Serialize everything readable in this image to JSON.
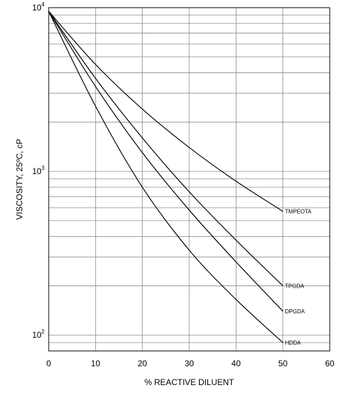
{
  "chart_data": {
    "type": "line",
    "xlabel": "% REACTIVE DILUENT",
    "ylabel": "VISCOSITY, 25ºC, cP",
    "xlim": [
      0,
      60
    ],
    "ylim": [
      80,
      10000
    ],
    "yscale": "log",
    "grid": true,
    "x_ticks": [
      "0",
      "10",
      "20",
      "30",
      "40",
      "50",
      "60"
    ],
    "y_ticks": [
      {
        "base": "10",
        "exp": "2",
        "value": 100
      },
      {
        "base": "10",
        "exp": "3",
        "value": 1000
      },
      {
        "base": "10",
        "exp": "4",
        "value": 10000
      }
    ],
    "series": [
      {
        "name": "TMPEOTA",
        "x": [
          0,
          10,
          20,
          30,
          40,
          50
        ],
        "values": [
          9500,
          4500,
          2400,
          1400,
          870,
          570
        ]
      },
      {
        "name": "TPGDA",
        "x": [
          0,
          10,
          20,
          30,
          40,
          50
        ],
        "values": [
          9500,
          3700,
          1600,
          750,
          380,
          200
        ]
      },
      {
        "name": "DPGDA",
        "x": [
          0,
          10,
          20,
          30,
          40,
          50
        ],
        "values": [
          9500,
          3300,
          1300,
          580,
          280,
          140
        ]
      },
      {
        "name": "HDDA",
        "x": [
          0,
          10,
          20,
          30,
          40,
          50
        ],
        "values": [
          9500,
          2500,
          800,
          330,
          165,
          90
        ]
      }
    ]
  }
}
